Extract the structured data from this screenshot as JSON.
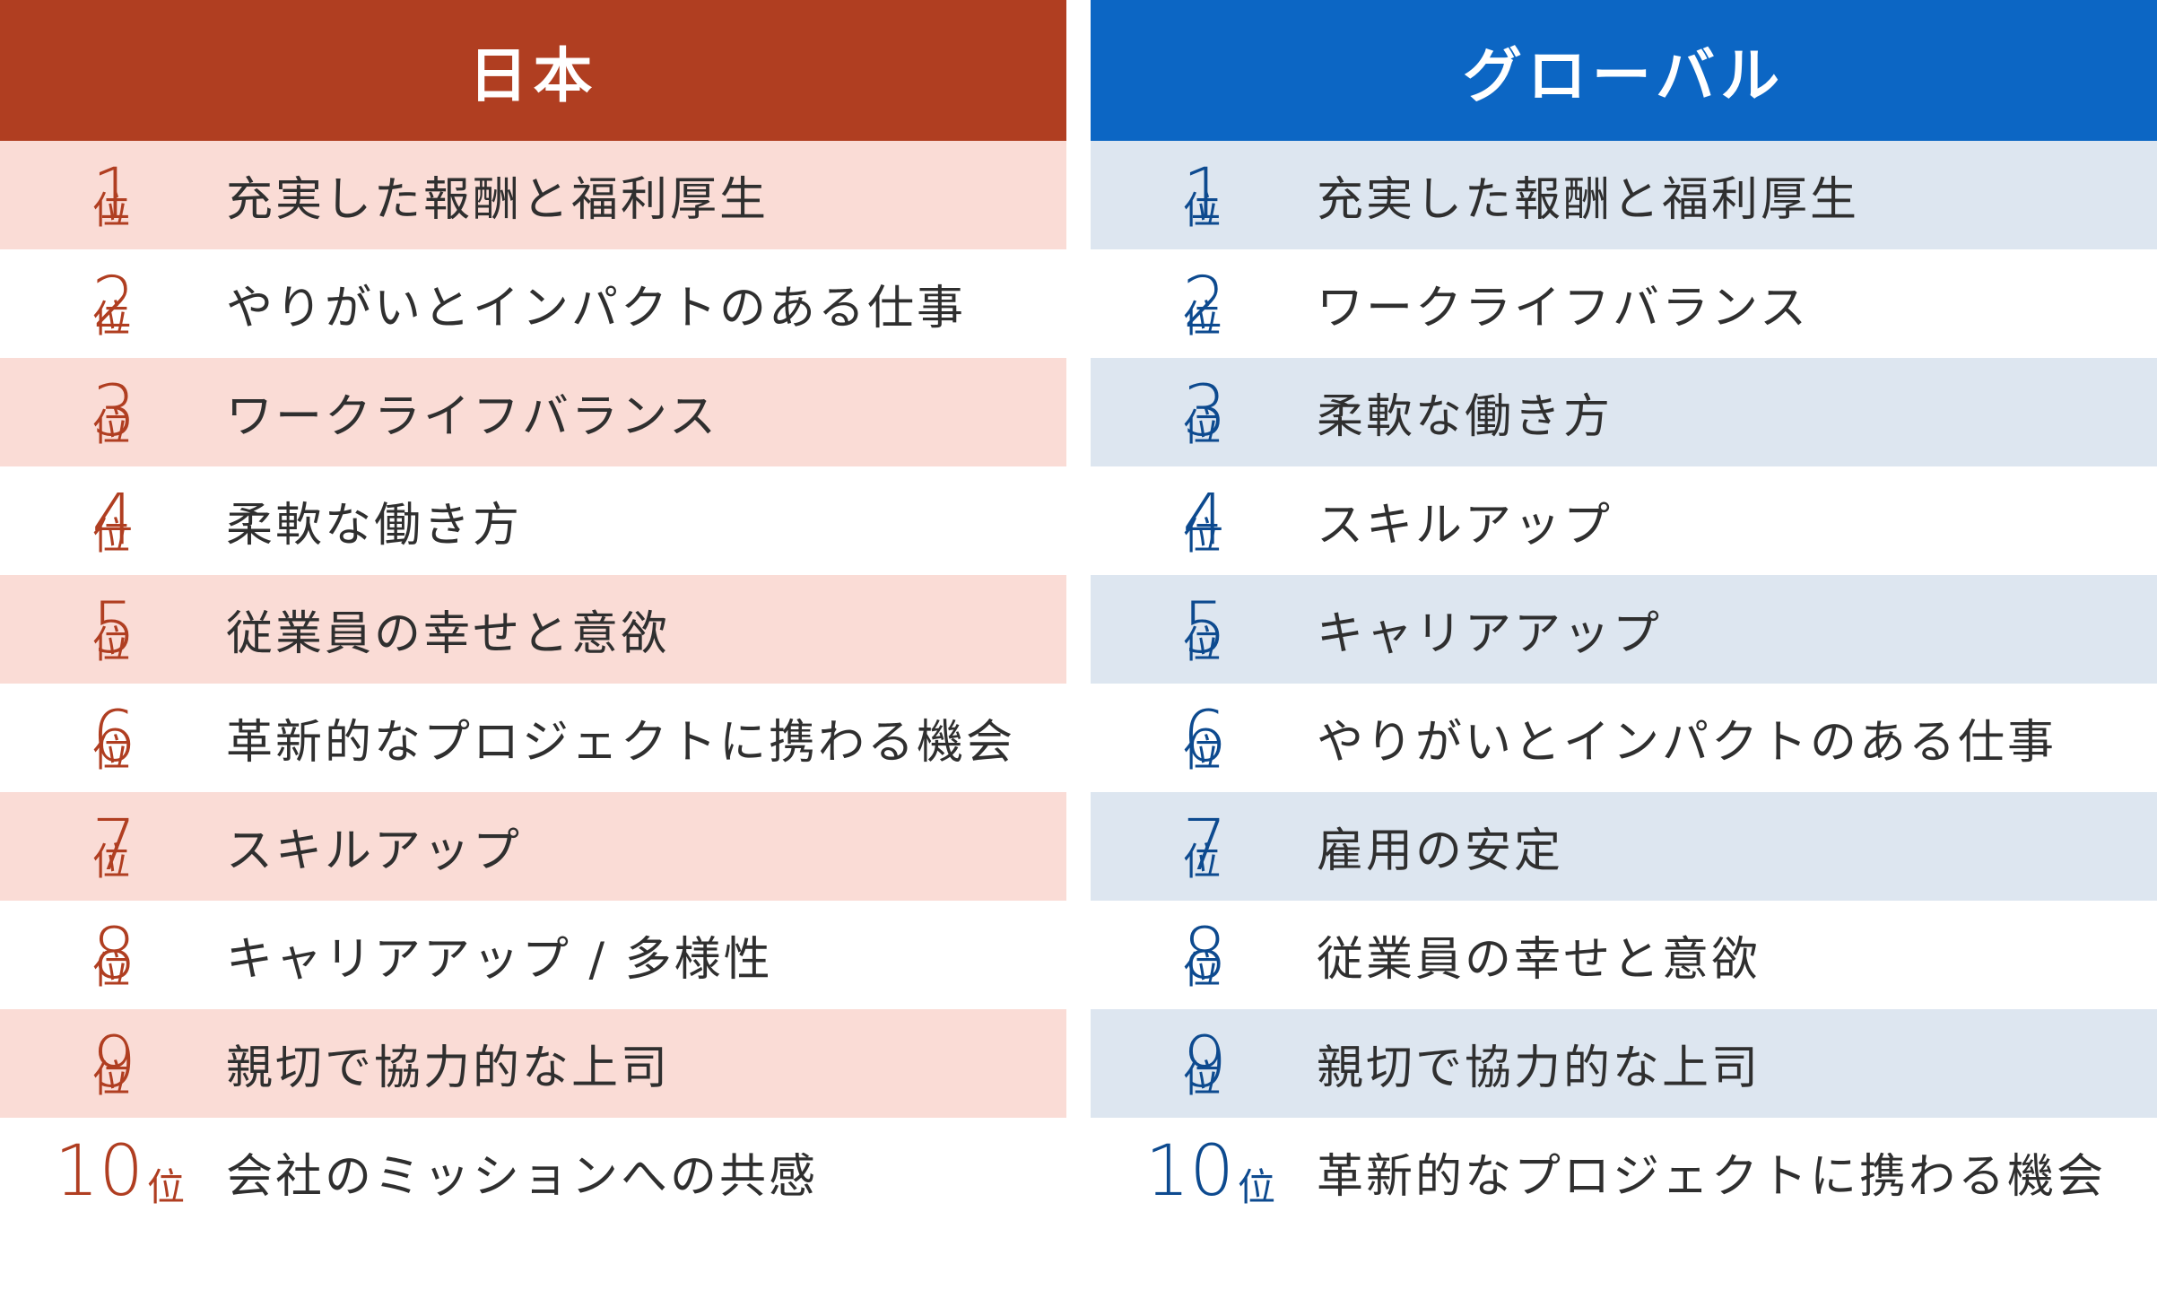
{
  "panels": [
    {
      "id": "japan",
      "title": "日本",
      "suffix": "位",
      "items": [
        {
          "rank": "1",
          "label": "充実した報酬と福利厚生"
        },
        {
          "rank": "2",
          "label": "やりがいとインパクトのある仕事"
        },
        {
          "rank": "3",
          "label": "ワークライフバランス"
        },
        {
          "rank": "4",
          "label": "柔軟な働き方"
        },
        {
          "rank": "5",
          "label": "従業員の幸せと意欲"
        },
        {
          "rank": "6",
          "label": "革新的なプロジェクトに携わる機会"
        },
        {
          "rank": "7",
          "label": "スキルアップ"
        },
        {
          "rank": "8",
          "label": "キャリアアップ / 多様性"
        },
        {
          "rank": "9",
          "label": "親切で協力的な上司"
        },
        {
          "rank": "10",
          "label": "会社のミッションへの共感"
        }
      ]
    },
    {
      "id": "global",
      "title": "グローバル",
      "suffix": "位",
      "items": [
        {
          "rank": "1",
          "label": "充実した報酬と福利厚生"
        },
        {
          "rank": "2",
          "label": "ワークライフバランス"
        },
        {
          "rank": "3",
          "label": "柔軟な働き方"
        },
        {
          "rank": "4",
          "label": "スキルアップ"
        },
        {
          "rank": "5",
          "label": "キャリアアップ"
        },
        {
          "rank": "6",
          "label": "やりがいとインパクトのある仕事"
        },
        {
          "rank": "7",
          "label": "雇用の安定"
        },
        {
          "rank": "8",
          "label": "従業員の幸せと意欲"
        },
        {
          "rank": "9",
          "label": "親切で協力的な上司"
        },
        {
          "rank": "10",
          "label": "革新的なプロジェクトに携わる機会"
        }
      ]
    }
  ],
  "colors": {
    "japan_accent": "#b03e21",
    "japan_stripe": "#fadcd6",
    "global_accent": "#0c66c4",
    "global_stripe": "#dde6f0"
  }
}
